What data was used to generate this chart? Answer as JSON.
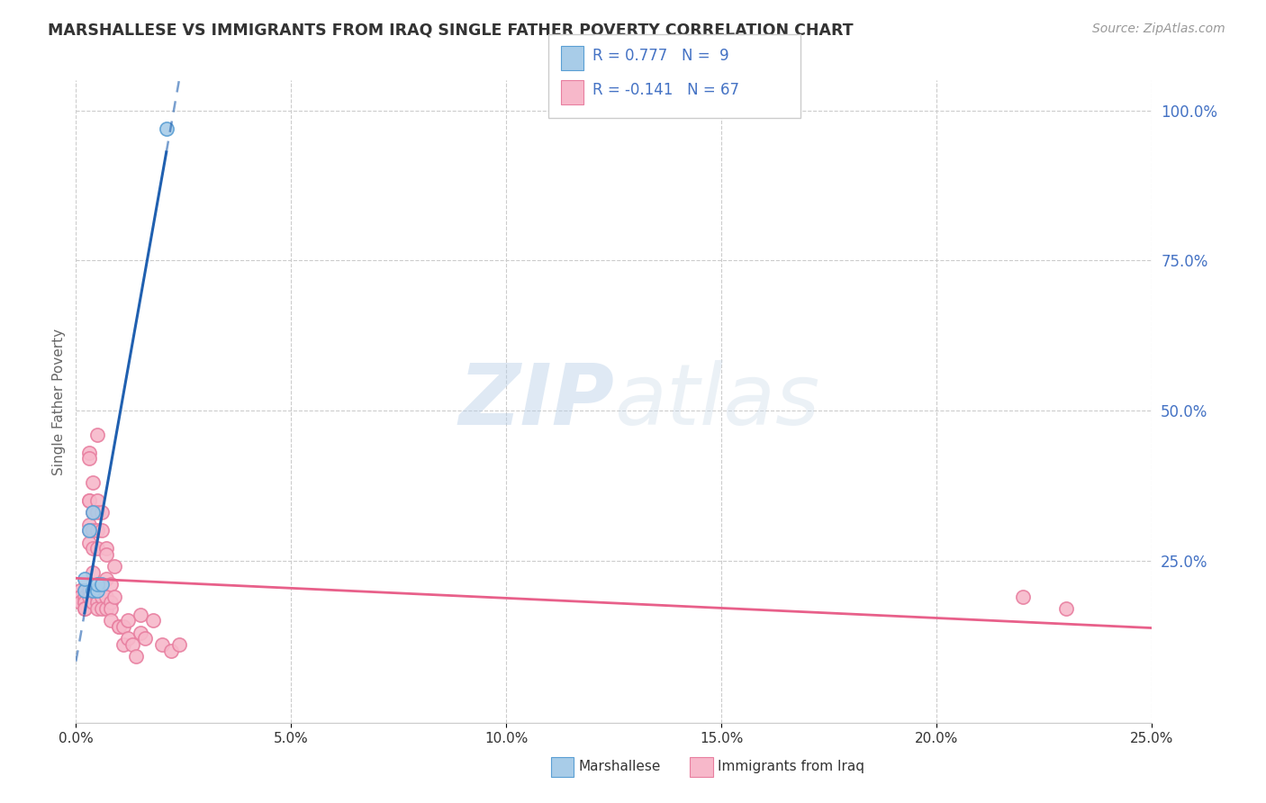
{
  "title": "MARSHALLESE VS IMMIGRANTS FROM IRAQ SINGLE FATHER POVERTY CORRELATION CHART",
  "source": "Source: ZipAtlas.com",
  "ylabel": "Single Father Poverty",
  "legend_blue_r": "R = 0.777",
  "legend_blue_n": "N =  9",
  "legend_pink_r": "R = -0.141",
  "legend_pink_n": "N = 67",
  "legend_label_blue": "Marshallese",
  "legend_label_pink": "Immigrants from Iraq",
  "blue_color": "#a8cce8",
  "blue_edge_color": "#5a9fd4",
  "pink_color": "#f7b8ca",
  "pink_edge_color": "#e87fa0",
  "blue_line_color": "#2060b0",
  "pink_line_color": "#e8608a",
  "watermark_zip": "ZIP",
  "watermark_atlas": "atlas",
  "xlim": [
    0.0,
    0.25
  ],
  "ylim": [
    -0.02,
    1.05
  ],
  "blue_x": [
    0.002,
    0.002,
    0.003,
    0.004,
    0.004,
    0.005,
    0.005,
    0.006,
    0.021
  ],
  "blue_y": [
    0.2,
    0.22,
    0.3,
    0.33,
    0.2,
    0.2,
    0.21,
    0.21,
    0.97
  ],
  "pink_x": [
    0.001,
    0.001,
    0.001,
    0.001,
    0.001,
    0.002,
    0.002,
    0.002,
    0.002,
    0.002,
    0.002,
    0.002,
    0.003,
    0.003,
    0.003,
    0.003,
    0.003,
    0.003,
    0.003,
    0.003,
    0.003,
    0.004,
    0.004,
    0.004,
    0.004,
    0.004,
    0.004,
    0.005,
    0.005,
    0.005,
    0.005,
    0.005,
    0.005,
    0.005,
    0.005,
    0.006,
    0.006,
    0.006,
    0.006,
    0.007,
    0.007,
    0.007,
    0.007,
    0.007,
    0.008,
    0.008,
    0.008,
    0.008,
    0.009,
    0.009,
    0.01,
    0.01,
    0.011,
    0.011,
    0.012,
    0.012,
    0.013,
    0.014,
    0.015,
    0.015,
    0.016,
    0.018,
    0.02,
    0.022,
    0.024,
    0.22,
    0.23
  ],
  "pink_y": [
    0.2,
    0.2,
    0.19,
    0.19,
    0.18,
    0.2,
    0.19,
    0.19,
    0.18,
    0.18,
    0.17,
    0.17,
    0.43,
    0.42,
    0.35,
    0.35,
    0.31,
    0.3,
    0.28,
    0.2,
    0.19,
    0.38,
    0.33,
    0.3,
    0.27,
    0.23,
    0.18,
    0.46,
    0.35,
    0.33,
    0.3,
    0.27,
    0.19,
    0.18,
    0.17,
    0.33,
    0.3,
    0.19,
    0.17,
    0.27,
    0.26,
    0.22,
    0.19,
    0.17,
    0.21,
    0.18,
    0.17,
    0.15,
    0.24,
    0.19,
    0.14,
    0.14,
    0.14,
    0.11,
    0.15,
    0.12,
    0.11,
    0.09,
    0.16,
    0.13,
    0.12,
    0.15,
    0.11,
    0.1,
    0.11,
    0.19,
    0.17
  ],
  "background_color": "#ffffff",
  "grid_color": "#cccccc",
  "title_color": "#333333",
  "source_color": "#999999",
  "axis_label_color": "#666666",
  "right_tick_color": "#4472c4",
  "bottom_tick_color": "#333333"
}
